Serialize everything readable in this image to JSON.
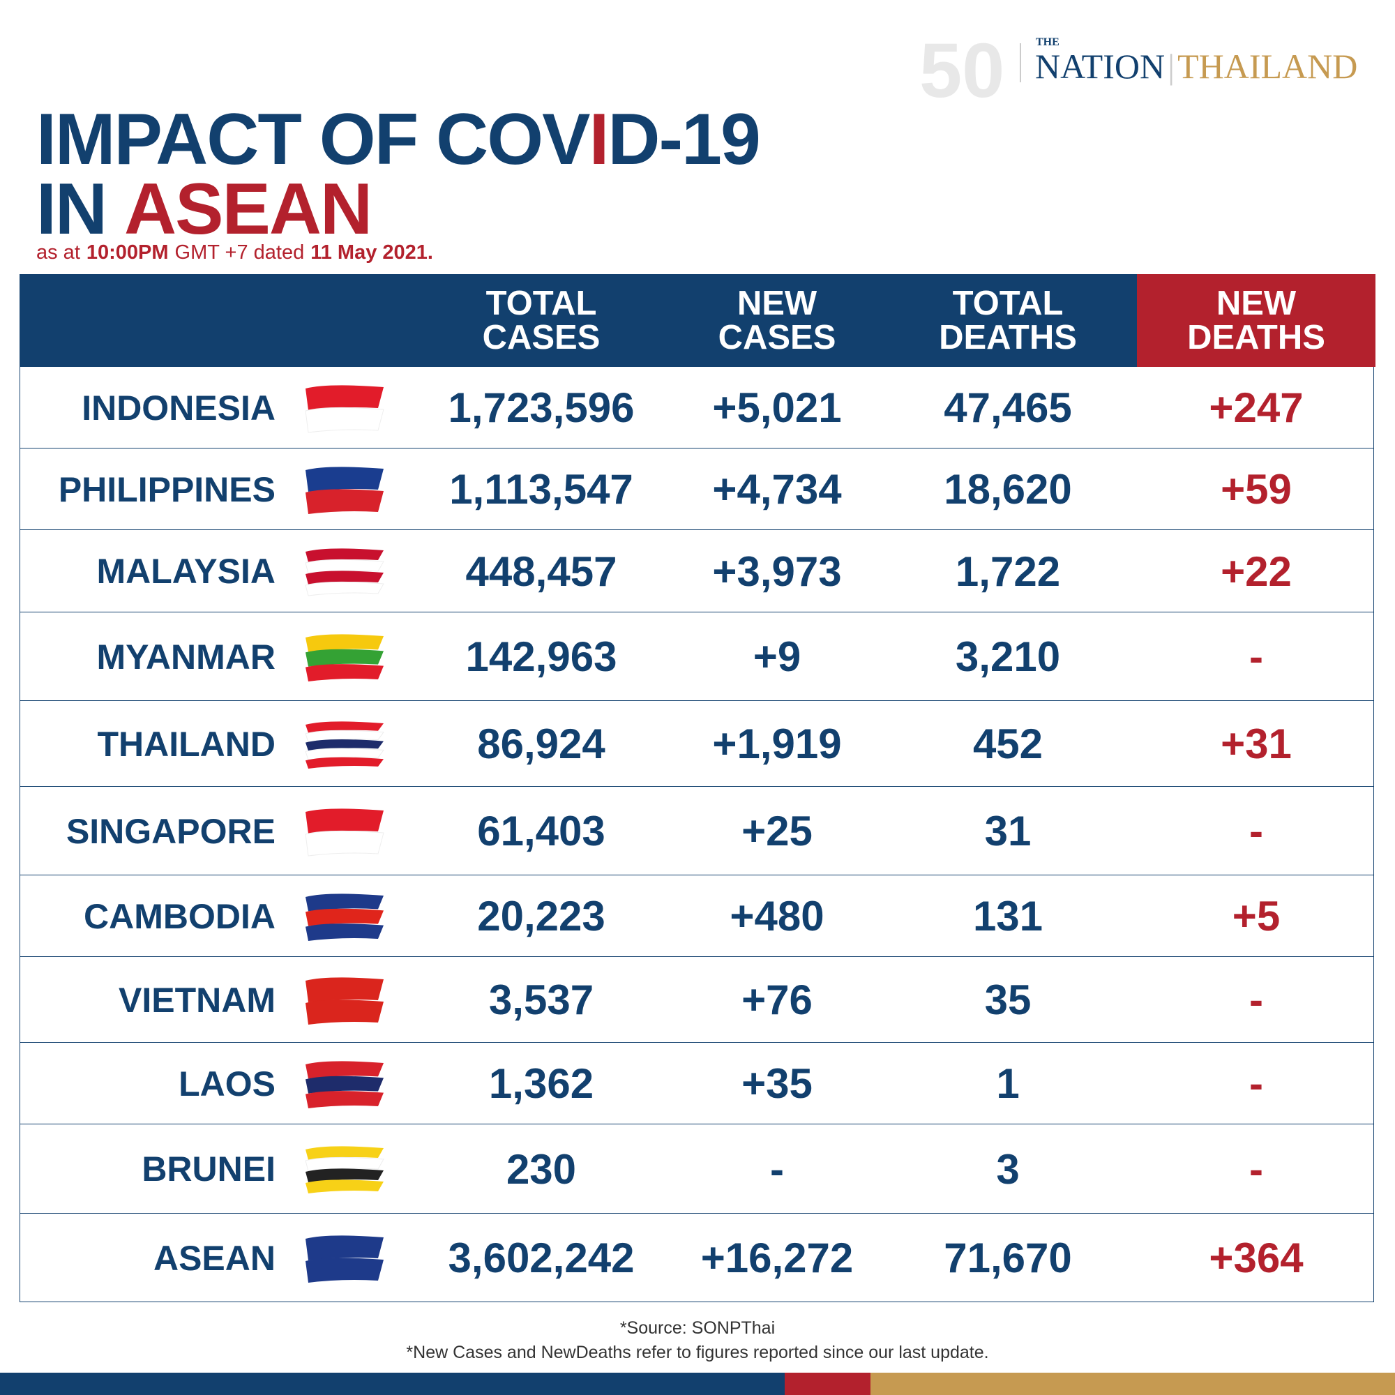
{
  "logo": {
    "anniversary": "50",
    "the": "THE",
    "nation": "NATION",
    "thailand": "THAILAND"
  },
  "title": {
    "line1": [
      "IMPACT OF COV",
      "I",
      "D-19"
    ],
    "line2": [
      "IN",
      "ASEAN"
    ]
  },
  "subtitle": [
    "as at",
    "10:00PM",
    "GMT +7 dated",
    "11 May 2021."
  ],
  "table": {
    "headers": [
      "TOTAL CASES",
      "NEW CASES",
      "TOTAL DEATHS",
      "NEW DEATHS"
    ],
    "rows": [
      [
        "INDONESIA",
        "1,723,596",
        "+5,021",
        "47,465",
        "+247"
      ],
      [
        "PHILIPPINES",
        "1,113,547",
        "+4,734",
        "18,620",
        "+59"
      ],
      [
        "MALAYSIA",
        "448,457",
        "+3,973",
        "1,722",
        "+22"
      ],
      [
        "MYANMAR",
        "142,963",
        "+9",
        "3,210",
        "-"
      ],
      [
        "THAILAND",
        "86,924",
        "+1,919",
        "452",
        "+31"
      ],
      [
        "SINGAPORE",
        "61,403",
        "+25",
        "31",
        "-"
      ],
      [
        "CAMBODIA",
        "20,223",
        "+480",
        "131",
        "+5"
      ],
      [
        "VIETNAM",
        "3,537",
        "+76",
        "35",
        "-"
      ],
      [
        "LAOS",
        "1,362",
        "+35",
        "1",
        "-"
      ],
      [
        "BRUNEI",
        "230",
        "-",
        "3",
        "-"
      ],
      [
        "ASEAN",
        "3,602,242",
        "+16,272",
        "71,670",
        "+364"
      ]
    ]
  },
  "footer": {
    "source": "*Source: SONPThai",
    "note": "*New Cases and NewDeaths refer to figures reported since our last update."
  }
}
